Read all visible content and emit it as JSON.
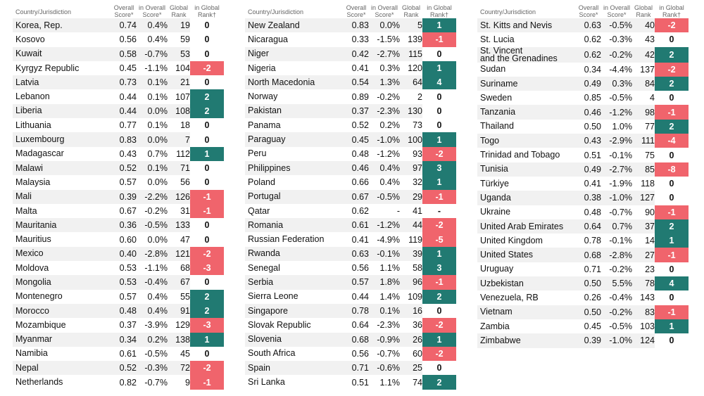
{
  "headers": [
    "Country/Jurisdiction",
    "Overall\nScore*",
    "in Overall\nScore*",
    "Global\nRank",
    "in Global\nRank†"
  ],
  "columns": [
    {
      "rows": [
        [
          "Korea, Rep.",
          "0.74",
          "0.4%",
          "19",
          "0"
        ],
        [
          "Kosovo",
          "0.56",
          "0.4%",
          "59",
          "0"
        ],
        [
          "Kuwait",
          "0.58",
          "-0.7%",
          "53",
          "0"
        ],
        [
          "Kyrgyz Republic",
          "0.45",
          "-1.1%",
          "104",
          "-2"
        ],
        [
          "Latvia",
          "0.73",
          "0.1%",
          "21",
          "0"
        ],
        [
          "Lebanon",
          "0.44",
          "0.1%",
          "107",
          "2"
        ],
        [
          "Liberia",
          "0.44",
          "0.0%",
          "108",
          "2"
        ],
        [
          "Lithuania",
          "0.77",
          "0.1%",
          "18",
          "0"
        ],
        [
          "Luxembourg",
          "0.83",
          "0.0%",
          "7",
          "0"
        ],
        [
          "Madagascar",
          "0.43",
          "0.7%",
          "112",
          "1"
        ],
        [
          "Malawi",
          "0.52",
          "0.1%",
          "71",
          "0"
        ],
        [
          "Malaysia",
          "0.57",
          "0.0%",
          "56",
          "0"
        ],
        [
          "Mali",
          "0.39",
          "-2.2%",
          "126",
          "-1"
        ],
        [
          "Malta",
          "0.67",
          "-0.2%",
          "31",
          "-1"
        ],
        [
          "Mauritania",
          "0.36",
          "-0.5%",
          "133",
          "0"
        ],
        [
          "Mauritius",
          "0.60",
          "0.0%",
          "47",
          "0"
        ],
        [
          "Mexico",
          "0.40",
          "-2.8%",
          "121",
          "-2"
        ],
        [
          "Moldova",
          "0.53",
          "-1.1%",
          "68",
          "-3"
        ],
        [
          "Mongolia",
          "0.53",
          "-0.4%",
          "67",
          "0"
        ],
        [
          "Montenegro",
          "0.57",
          "0.4%",
          "55",
          "2"
        ],
        [
          "Morocco",
          "0.48",
          "0.4%",
          "91",
          "2"
        ],
        [
          "Mozambique",
          "0.37",
          "-3.9%",
          "129",
          "-3"
        ],
        [
          "Myanmar",
          "0.34",
          "0.2%",
          "138",
          "1"
        ],
        [
          "Namibia",
          "0.61",
          "-0.5%",
          "45",
          "0"
        ],
        [
          "Nepal",
          "0.52",
          "-0.3%",
          "72",
          "-2"
        ],
        [
          "Netherlands",
          "0.82",
          "-0.7%",
          "9",
          "-1"
        ]
      ]
    },
    {
      "rows": [
        [
          "New Zealand",
          "0.83",
          "0.0%",
          "5",
          "1"
        ],
        [
          "Nicaragua",
          "0.33",
          "-1.5%",
          "139",
          "-1"
        ],
        [
          "Niger",
          "0.42",
          "-2.7%",
          "115",
          "0"
        ],
        [
          "Nigeria",
          "0.41",
          "0.3%",
          "120",
          "1"
        ],
        [
          "North Macedonia",
          "0.54",
          "1.3%",
          "64",
          "4"
        ],
        [
          "Norway",
          "0.89",
          "-0.2%",
          "2",
          "0"
        ],
        [
          "Pakistan",
          "0.37",
          "-2.3%",
          "130",
          "0"
        ],
        [
          "Panama",
          "0.52",
          "0.2%",
          "73",
          "0"
        ],
        [
          "Paraguay",
          "0.45",
          "-1.0%",
          "100",
          "1"
        ],
        [
          "Peru",
          "0.48",
          "-1.2%",
          "93",
          "-2"
        ],
        [
          "Philippines",
          "0.46",
          "0.4%",
          "97",
          "3"
        ],
        [
          "Poland",
          "0.66",
          "0.4%",
          "32",
          "1"
        ],
        [
          "Portugal",
          "0.67",
          "-0.5%",
          "29",
          "-1"
        ],
        [
          "Qatar",
          "0.62",
          "-",
          "41",
          "-"
        ],
        [
          "Romania",
          "0.61",
          "-1.2%",
          "44",
          "-2"
        ],
        [
          "Russian Federation",
          "0.41",
          "-4.9%",
          "119",
          "-5"
        ],
        [
          "Rwanda",
          "0.63",
          "-0.1%",
          "39",
          "1"
        ],
        [
          "Senegal",
          "0.56",
          "1.1%",
          "58",
          "3"
        ],
        [
          "Serbia",
          "0.57",
          "1.8%",
          "96",
          "-1"
        ],
        [
          "Sierra Leone",
          "0.44",
          "1.4%",
          "109",
          "2"
        ],
        [
          "Singapore",
          "0.78",
          "0.1%",
          "16",
          "0"
        ],
        [
          "Slovak Republic",
          "0.64",
          "-2.3%",
          "36",
          "-2"
        ],
        [
          "Slovenia",
          "0.68",
          "-0.9%",
          "26",
          "1"
        ],
        [
          "South Africa",
          "0.56",
          "-0.7%",
          "60",
          "-2"
        ],
        [
          "Spain",
          "0.71",
          "-0.6%",
          "25",
          "0"
        ],
        [
          "Sri Lanka",
          "0.51",
          "1.1%",
          "74",
          "2"
        ]
      ]
    },
    {
      "rows": [
        [
          "St. Kitts and Nevis",
          "0.63",
          "-0.5%",
          "40",
          "-2"
        ],
        [
          "St. Lucia",
          "0.62",
          "-0.3%",
          "43",
          "0"
        ],
        [
          "St. Vincent\nand the Grenadines",
          "0.62",
          "-0.2%",
          "42",
          "2"
        ],
        [
          "Sudan",
          "0.34",
          "-4.4%",
          "137",
          "-2"
        ],
        [
          "Suriname",
          "0.49",
          "0.3%",
          "84",
          "2"
        ],
        [
          "Sweden",
          "0.85",
          "-0.5%",
          "4",
          "0"
        ],
        [
          "Tanzania",
          "0.46",
          "-1.2%",
          "98",
          "-1"
        ],
        [
          "Thailand",
          "0.50",
          "1.0%",
          "77",
          "2"
        ],
        [
          "Togo",
          "0.43",
          "-2.9%",
          "111",
          "-4"
        ],
        [
          "Trinidad and Tobago",
          "0.51",
          "-0.1%",
          "75",
          "0"
        ],
        [
          "Tunisia",
          "0.49",
          "-2.7%",
          "85",
          "-8"
        ],
        [
          "Türkiye",
          "0.41",
          "-1.9%",
          "118",
          "0"
        ],
        [
          "Uganda",
          "0.38",
          "-1.0%",
          "127",
          "0"
        ],
        [
          "Ukraine",
          "0.48",
          "-0.7%",
          "90",
          "-1"
        ],
        [
          "United Arab Emirates",
          "0.64",
          "0.7%",
          "37",
          "2"
        ],
        [
          "United Kingdom",
          "0.78",
          "-0.1%",
          "14",
          "1"
        ],
        [
          "United States",
          "0.68",
          "-2.8%",
          "27",
          "-1"
        ],
        [
          "Uruguay",
          "0.71",
          "-0.2%",
          "23",
          "0"
        ],
        [
          "Uzbekistan",
          "0.50",
          "5.5%",
          "78",
          "4"
        ],
        [
          "Venezuela, RB",
          "0.26",
          "-0.4%",
          "143",
          "0"
        ],
        [
          "Vietnam",
          "0.50",
          "-0.2%",
          "83",
          "-1"
        ],
        [
          "Zambia",
          "0.45",
          "-0.5%",
          "103",
          "1"
        ],
        [
          "Zimbabwe",
          "0.39",
          "-1.0%",
          "124",
          "0"
        ]
      ]
    }
  ]
}
